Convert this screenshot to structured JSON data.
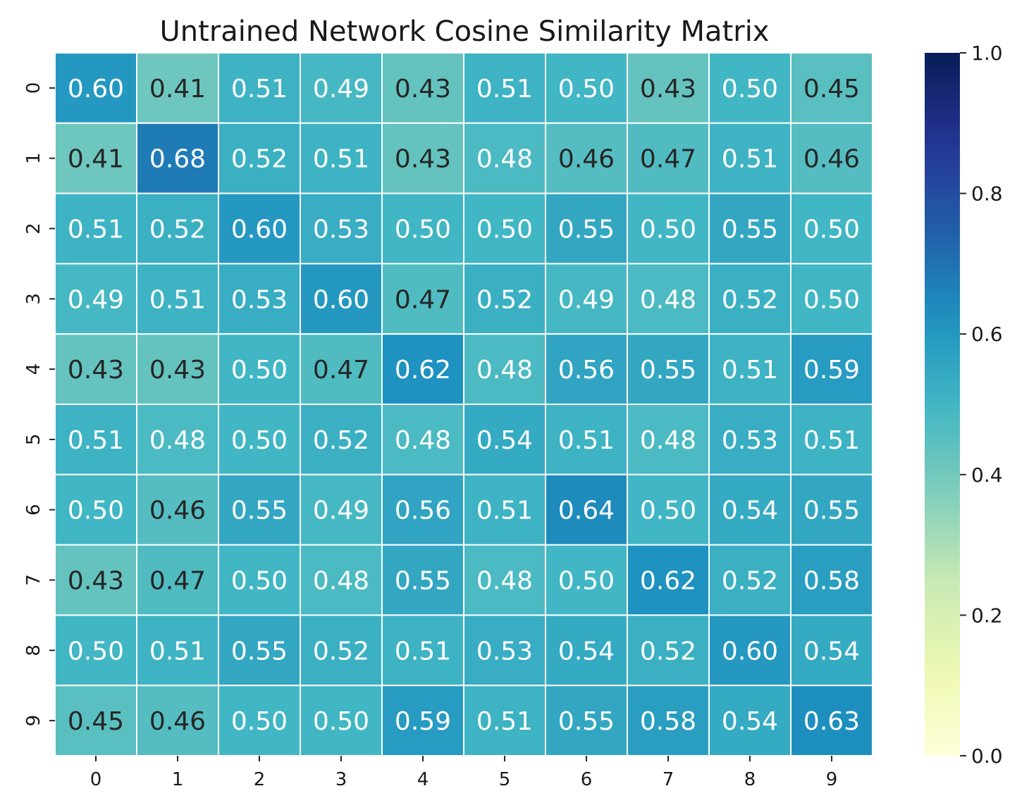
{
  "chart_data": {
    "type": "heatmap",
    "title": "Untrained Network Cosine Similarity Matrix",
    "x_categories": [
      "0",
      "1",
      "2",
      "3",
      "4",
      "5",
      "6",
      "7",
      "8",
      "9"
    ],
    "y_categories": [
      "0",
      "1",
      "2",
      "3",
      "4",
      "5",
      "6",
      "7",
      "8",
      "9"
    ],
    "values": [
      [
        0.6,
        0.41,
        0.51,
        0.49,
        0.43,
        0.51,
        0.5,
        0.43,
        0.5,
        0.45
      ],
      [
        0.41,
        0.68,
        0.52,
        0.51,
        0.43,
        0.48,
        0.46,
        0.47,
        0.51,
        0.46
      ],
      [
        0.51,
        0.52,
        0.6,
        0.53,
        0.5,
        0.5,
        0.55,
        0.5,
        0.55,
        0.5
      ],
      [
        0.49,
        0.51,
        0.53,
        0.6,
        0.47,
        0.52,
        0.49,
        0.48,
        0.52,
        0.5
      ],
      [
        0.43,
        0.43,
        0.5,
        0.47,
        0.62,
        0.48,
        0.56,
        0.55,
        0.51,
        0.59
      ],
      [
        0.51,
        0.48,
        0.5,
        0.52,
        0.48,
        0.54,
        0.51,
        0.48,
        0.53,
        0.51
      ],
      [
        0.5,
        0.46,
        0.55,
        0.49,
        0.56,
        0.51,
        0.64,
        0.5,
        0.54,
        0.55
      ],
      [
        0.43,
        0.47,
        0.5,
        0.48,
        0.55,
        0.48,
        0.5,
        0.62,
        0.52,
        0.58
      ],
      [
        0.5,
        0.51,
        0.55,
        0.52,
        0.51,
        0.53,
        0.54,
        0.52,
        0.6,
        0.54
      ],
      [
        0.45,
        0.46,
        0.5,
        0.5,
        0.59,
        0.51,
        0.55,
        0.58,
        0.54,
        0.63
      ]
    ],
    "value_format": "0.00",
    "colormap": "YlGnBu",
    "vmin": 0.0,
    "vmax": 1.0,
    "colorbar_ticks": [
      "0.0",
      "0.2",
      "0.4",
      "0.6",
      "0.8",
      "1.0"
    ],
    "colorbar_position": "right",
    "cell_border_color": "#ffffff",
    "dark_text_color": "#262626",
    "light_text_color": "#ffffff"
  }
}
